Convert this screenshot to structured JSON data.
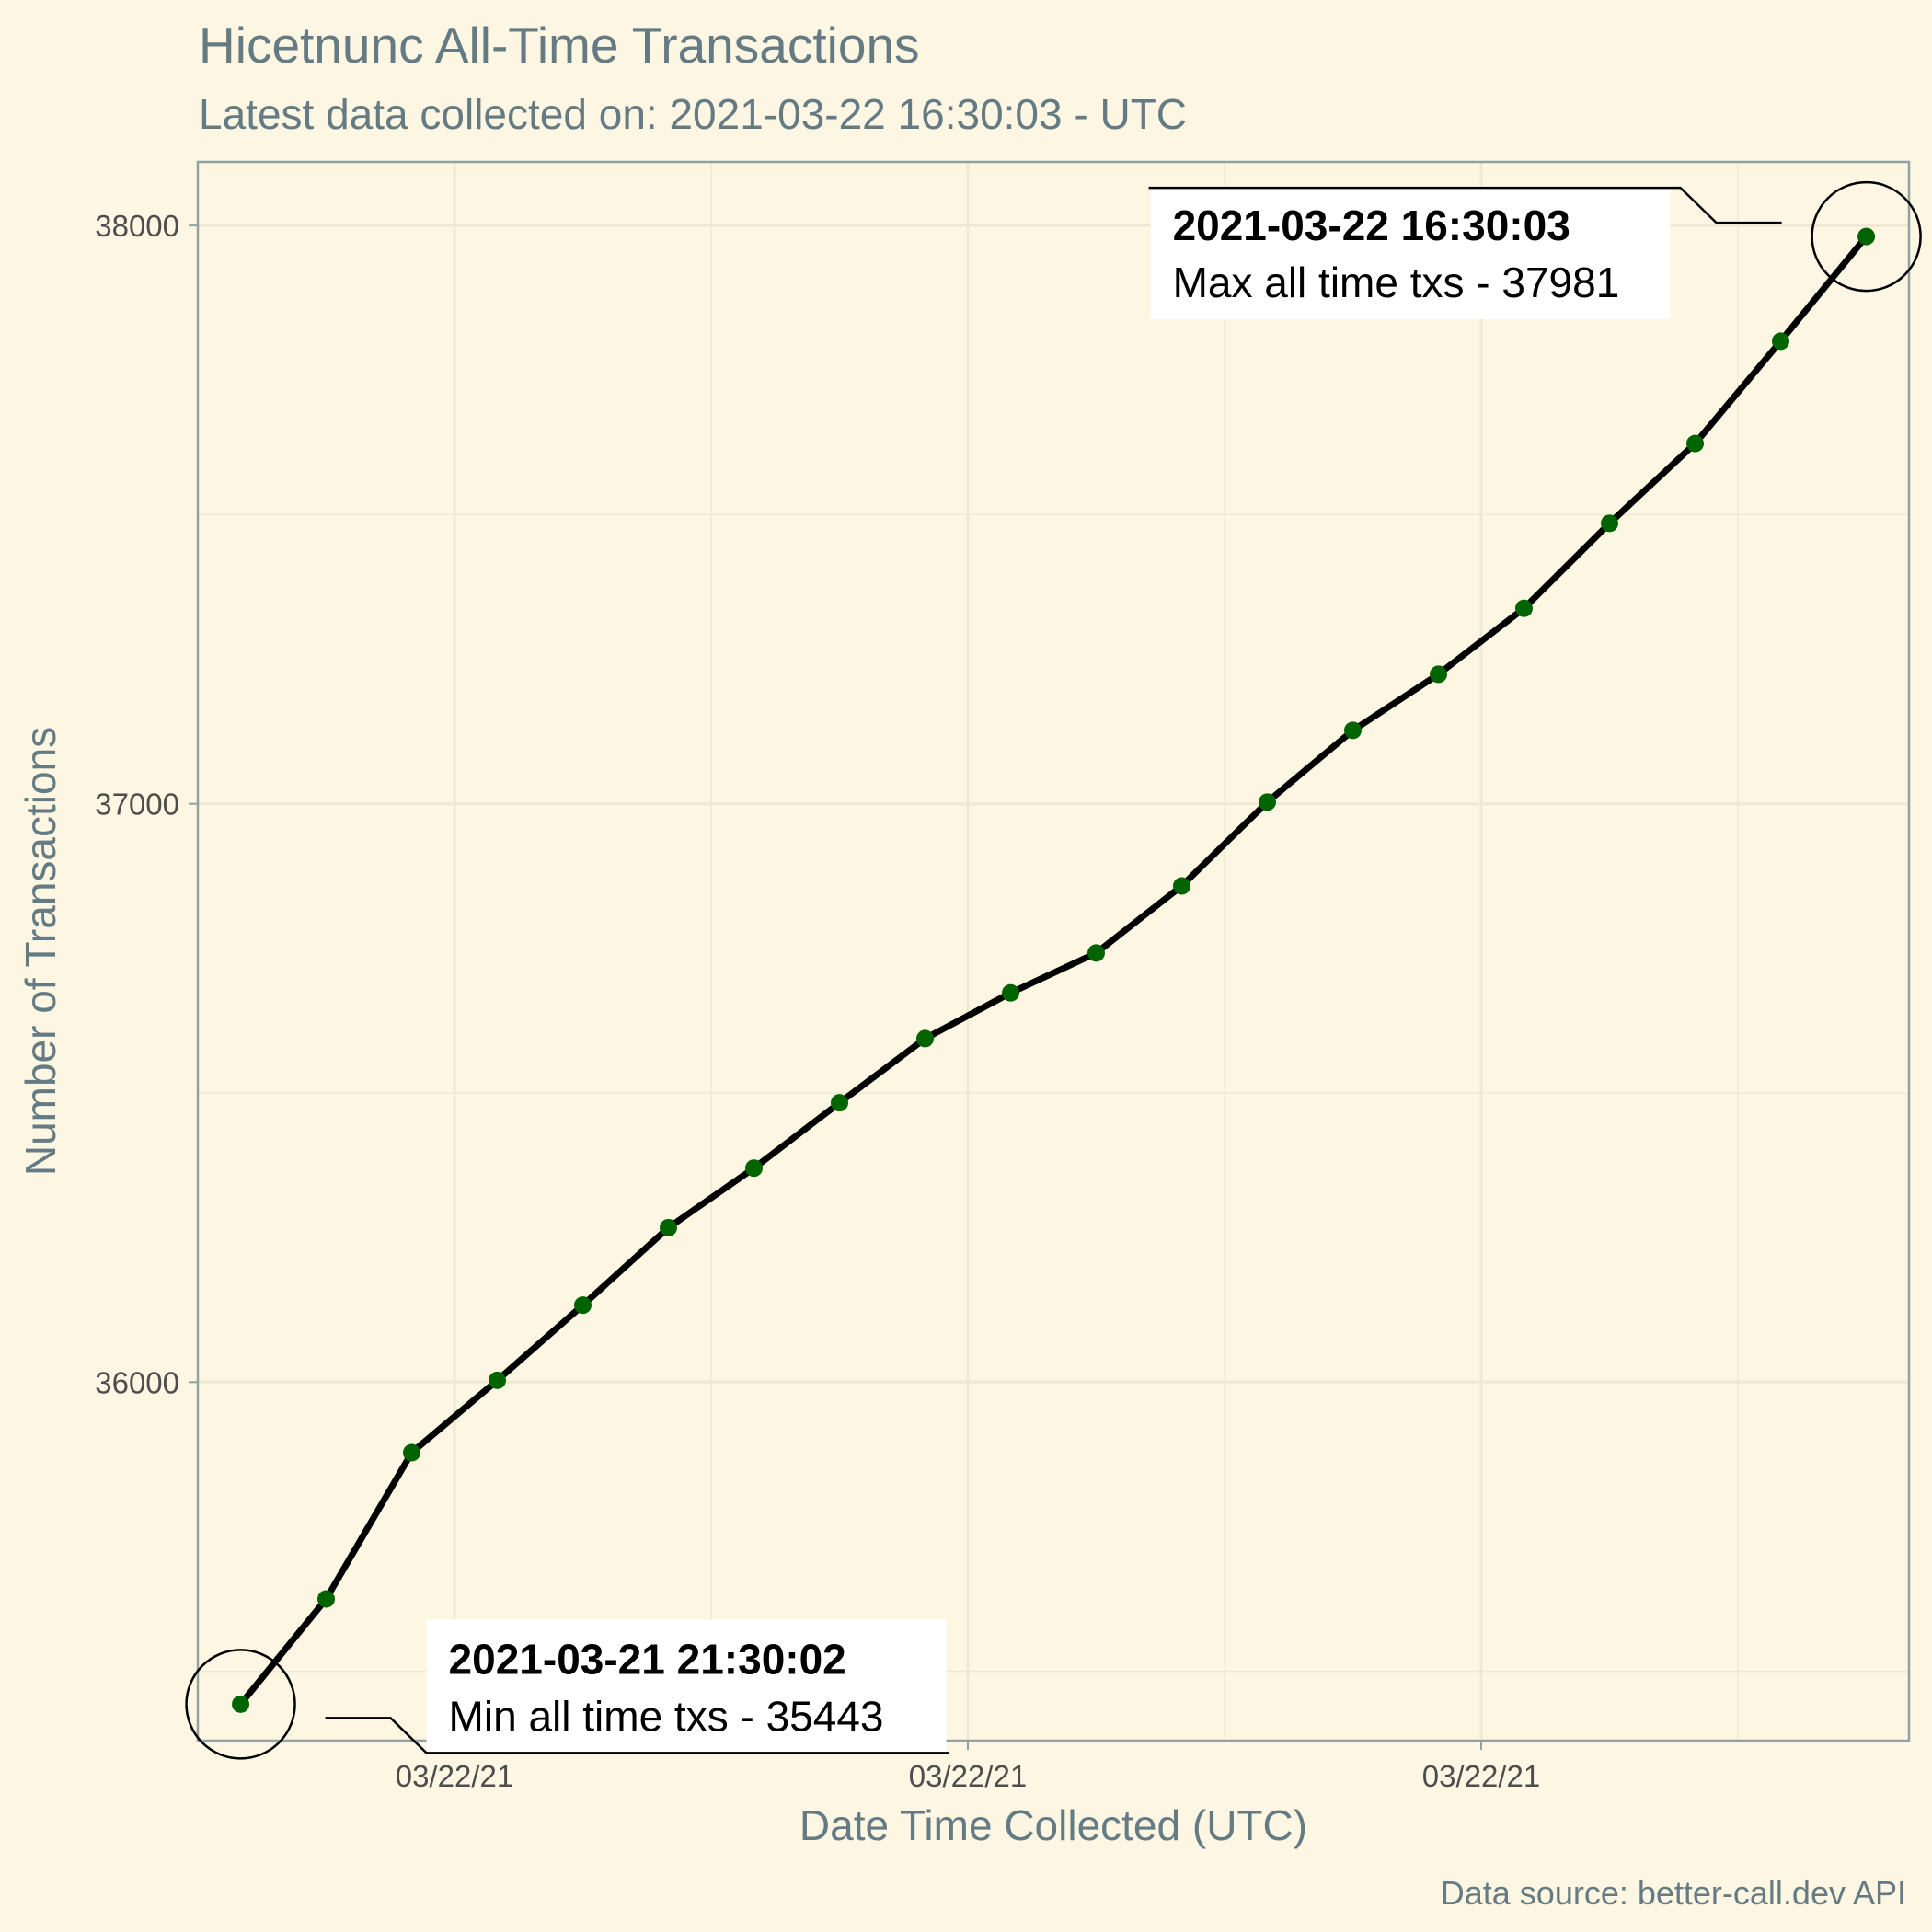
{
  "title": "Hicetnunc All-Time Transactions",
  "subtitle": "Latest data collected on: 2021-03-22 16:30:03  - UTC",
  "caption": "Data source: better-call.dev API",
  "colors": {
    "background": "#fdf6e3",
    "text": "#657b83",
    "line": "#000000",
    "point": "#006400"
  },
  "chart_data": {
    "type": "line",
    "title": "Hicetnunc All-Time Transactions",
    "subtitle": "Latest data collected on: 2021-03-22 16:30:03  - UTC",
    "xlabel": "Date Time Collected (UTC)",
    "ylabel": "Number of Transactions",
    "x": [
      "2021-03-21 21:30:02",
      "2021-03-21 22:30",
      "2021-03-21 23:30",
      "2021-03-22 00:30",
      "2021-03-22 01:30",
      "2021-03-22 02:30",
      "2021-03-22 03:30",
      "2021-03-22 04:30",
      "2021-03-22 05:30",
      "2021-03-22 06:30",
      "2021-03-22 07:30",
      "2021-03-22 08:30",
      "2021-03-22 09:30",
      "2021-03-22 10:30",
      "2021-03-22 11:30",
      "2021-03-22 12:30",
      "2021-03-22 13:30",
      "2021-03-22 14:30",
      "2021-03-22 15:30",
      "2021-03-22 16:30:03"
    ],
    "y": [
      35443,
      35625,
      35878,
      36003,
      36133,
      36267,
      36370,
      36483,
      36594,
      36673,
      36742,
      36858,
      37003,
      37127,
      37224,
      37338,
      37485,
      37623,
      37800,
      37981
    ],
    "x_ticks": [
      {
        "value": "2021-03-22 00:00",
        "label": "03/22/21"
      },
      {
        "value": "2021-03-22 06:00",
        "label": "03/22/21"
      },
      {
        "value": "2021-03-22 12:00",
        "label": "03/22/21"
      }
    ],
    "y_ticks": [
      36000,
      37000,
      38000
    ],
    "ylim": [
      35380,
      38110
    ],
    "xlim": [
      "2021-03-21 21:00",
      "2021-03-22 17:00"
    ],
    "grid": true,
    "annotations": [
      {
        "target": "min",
        "bold": "2021-03-21 21:30:02",
        "text": "Min all time txs - 35443"
      },
      {
        "target": "max",
        "bold": "2021-03-22 16:30:03",
        "text": "Max all time txs - 37981"
      }
    ]
  }
}
